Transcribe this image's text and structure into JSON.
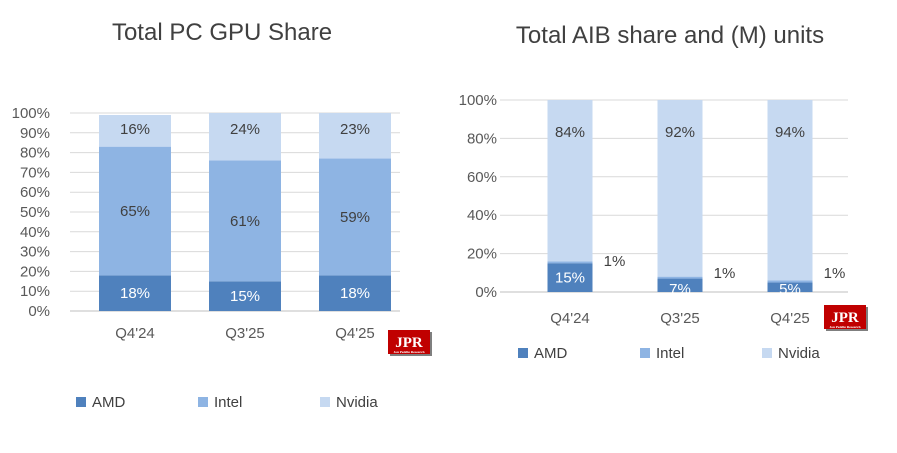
{
  "colors": {
    "amd": "#4f81bd",
    "intel": "#8eb4e3",
    "nvidia": "#c6d9f1"
  },
  "logo": {
    "text": "JPR",
    "subtext": "Jon Peddie Research"
  },
  "chart_data": [
    {
      "type": "bar",
      "stacked": true,
      "title": "Total PC GPU Share",
      "categories": [
        "Q4'24",
        "Q3'25",
        "Q4'25"
      ],
      "ylim": [
        0,
        100
      ],
      "yticks": [
        "0%",
        "10%",
        "20%",
        "30%",
        "40%",
        "50%",
        "60%",
        "70%",
        "80%",
        "90%",
        "100%"
      ],
      "grid": true,
      "legend": "bottom",
      "series": [
        {
          "name": "AMD",
          "values": [
            18,
            15,
            18
          ],
          "labels": [
            "18%",
            "15%",
            "18%"
          ]
        },
        {
          "name": "Intel",
          "values": [
            65,
            61,
            59
          ],
          "labels": [
            "65%",
            "61%",
            "59%"
          ]
        },
        {
          "name": "Nvidia",
          "values": [
            16,
            24,
            23
          ],
          "labels": [
            "16%",
            "24%",
            "23%"
          ]
        }
      ]
    },
    {
      "type": "bar",
      "stacked": true,
      "title": "Total AIB share and (M) units",
      "categories": [
        "Q4'24",
        "Q3'25",
        "Q4'25"
      ],
      "ylim": [
        0,
        100
      ],
      "yticks": [
        "0%",
        "20%",
        "40%",
        "60%",
        "80%",
        "100%"
      ],
      "grid": true,
      "legend": "bottom",
      "series": [
        {
          "name": "AMD",
          "values": [
            15,
            7,
            5
          ],
          "labels": [
            "15%",
            "7%",
            "5%"
          ]
        },
        {
          "name": "Intel",
          "values": [
            1,
            1,
            1
          ],
          "labels": [
            "1%",
            "1%",
            "1%"
          ]
        },
        {
          "name": "Nvidia",
          "values": [
            84,
            92,
            94
          ],
          "labels": [
            "84%",
            "92%",
            "94%"
          ]
        }
      ]
    }
  ]
}
